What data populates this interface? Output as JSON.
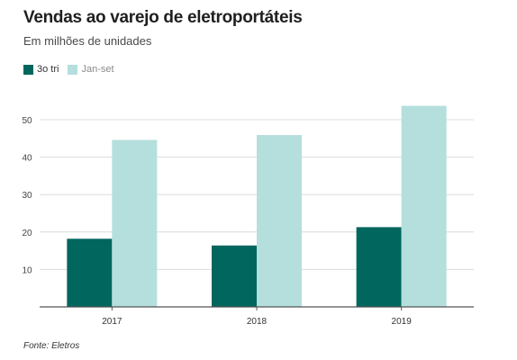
{
  "title": "Vendas ao varejo de eletroportáteis",
  "subtitle": "Em milhões de unidades",
  "source": "Fonte: Eletros",
  "colors": {
    "series_dark": "#00665e",
    "series_light": "#b4dfdd",
    "grid": "#dcdcdc",
    "axis": "#555555"
  },
  "chart_data": {
    "type": "bar",
    "title": "Vendas ao varejo de eletroportáteis",
    "subtitle": "Em milhões de unidades",
    "xlabel": "",
    "ylabel": "",
    "categories": [
      "2017",
      "2018",
      "2019"
    ],
    "series": [
      {
        "name": "3o tri",
        "values": [
          18.2,
          16.4,
          21.3
        ]
      },
      {
        "name": "Jan-set",
        "values": [
          44.6,
          45.9,
          53.7
        ]
      }
    ],
    "ylim": [
      0,
      50
    ],
    "yticks": [
      10,
      20,
      30,
      40,
      50
    ],
    "grid": true,
    "legend_position": "top-left"
  }
}
